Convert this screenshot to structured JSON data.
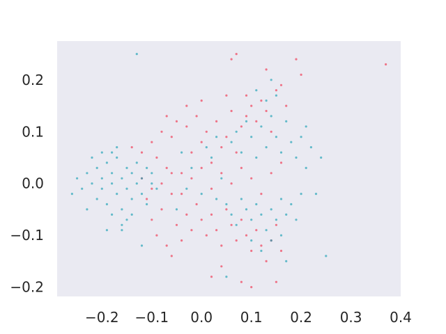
{
  "chart_data": {
    "type": "scatter",
    "title": "",
    "xlabel": "",
    "ylabel": "",
    "xlim": [
      -0.29,
      0.4
    ],
    "ylim": [
      -0.218,
      0.275
    ],
    "x_ticks": [
      {
        "value": -0.2,
        "label": "−0.2"
      },
      {
        "value": -0.1,
        "label": "−0.1"
      },
      {
        "value": 0.0,
        "label": "0.0"
      },
      {
        "value": 0.1,
        "label": "0.1"
      },
      {
        "value": 0.2,
        "label": "0.2"
      },
      {
        "value": 0.3,
        "label": "0.3"
      },
      {
        "value": 0.4,
        "label": "0.4"
      }
    ],
    "y_ticks": [
      {
        "value": -0.2,
        "label": "−0.2"
      },
      {
        "value": -0.1,
        "label": "−0.1"
      },
      {
        "value": 0.0,
        "label": "0.0"
      },
      {
        "value": 0.1,
        "label": "0.1"
      },
      {
        "value": 0.2,
        "label": "0.2"
      }
    ],
    "grid": false,
    "background_color": "#eaeaf2",
    "series": [
      {
        "color": "#f0344e",
        "opacity": 0.65,
        "points": [
          [
            -0.14,
            0.07
          ],
          [
            -0.12,
            0.06
          ],
          [
            -0.1,
            0.08
          ],
          [
            -0.09,
            0.05
          ],
          [
            -0.08,
            0.1
          ],
          [
            -0.07,
            0.03
          ],
          [
            -0.06,
            0.09
          ],
          [
            -0.05,
            0.12
          ],
          [
            -0.04,
            0.02
          ],
          [
            -0.03,
            0.11
          ],
          [
            -0.02,
            0.06
          ],
          [
            -0.01,
            0.13
          ],
          [
            0.0,
            0.08
          ],
          [
            0.01,
            0.1
          ],
          [
            0.02,
            0.04
          ],
          [
            0.03,
            0.12
          ],
          [
            0.04,
            0.07
          ],
          [
            0.05,
            0.09
          ],
          [
            0.06,
            0.14
          ],
          [
            0.07,
            0.06
          ],
          [
            0.08,
            0.11
          ],
          [
            0.09,
            0.13
          ],
          [
            0.1,
            0.15
          ],
          [
            0.11,
            0.12
          ],
          [
            0.12,
            0.16
          ],
          [
            0.13,
            0.14
          ],
          [
            0.14,
            0.1
          ],
          [
            0.15,
            0.18
          ],
          [
            0.16,
            0.19
          ],
          [
            0.17,
            0.15
          ],
          [
            -0.11,
            -0.03
          ],
          [
            -0.1,
            -0.07
          ],
          [
            -0.09,
            -0.1
          ],
          [
            -0.08,
            -0.05
          ],
          [
            -0.07,
            -0.12
          ],
          [
            -0.06,
            -0.02
          ],
          [
            -0.05,
            -0.08
          ],
          [
            -0.04,
            -0.11
          ],
          [
            -0.03,
            -0.06
          ],
          [
            -0.02,
            -0.09
          ],
          [
            -0.01,
            -0.04
          ],
          [
            0.0,
            -0.07
          ],
          [
            0.01,
            -0.1
          ],
          [
            0.02,
            -0.06
          ],
          [
            0.03,
            -0.09
          ],
          [
            0.04,
            -0.12
          ],
          [
            0.05,
            -0.05
          ],
          [
            0.06,
            -0.08
          ],
          [
            0.07,
            -0.11
          ],
          [
            0.08,
            -0.07
          ],
          [
            0.09,
            -0.1
          ],
          [
            0.1,
            -0.13
          ],
          [
            0.11,
            -0.09
          ],
          [
            0.12,
            -0.12
          ],
          [
            0.13,
            -0.15
          ],
          [
            0.14,
            -0.11
          ],
          [
            0.15,
            -0.08
          ],
          [
            0.16,
            -0.13
          ],
          [
            0.02,
            -0.18
          ],
          [
            0.08,
            -0.19
          ],
          [
            -0.12,
            0.01
          ],
          [
            -0.1,
            -0.01
          ],
          [
            -0.08,
            0.0
          ],
          [
            -0.06,
            0.02
          ],
          [
            -0.04,
            -0.02
          ],
          [
            -0.02,
            0.01
          ],
          [
            0.0,
            0.03
          ],
          [
            0.02,
            -0.01
          ],
          [
            0.04,
            0.02
          ],
          [
            0.06,
            0.0
          ],
          [
            0.08,
            0.03
          ],
          [
            0.1,
            0.01
          ],
          [
            0.12,
            -0.02
          ],
          [
            0.14,
            0.02
          ],
          [
            0.16,
            0.04
          ],
          [
            0.05,
            0.17
          ],
          [
            0.07,
            0.25
          ],
          [
            0.06,
            0.24
          ],
          [
            0.13,
            0.22
          ],
          [
            0.19,
            0.24
          ],
          [
            0.2,
            0.21
          ],
          [
            0.37,
            0.23
          ],
          [
            0.1,
            -0.2
          ],
          [
            0.15,
            -0.19
          ],
          [
            -0.06,
            -0.14
          ],
          [
            0.04,
            -0.16
          ],
          [
            -0.03,
            0.15
          ],
          [
            0.0,
            0.16
          ],
          [
            -0.07,
            0.13
          ],
          [
            0.09,
            0.17
          ]
        ]
      },
      {
        "color": "#1a9fb4",
        "opacity": 0.65,
        "points": [
          [
            -0.26,
            -0.02
          ],
          [
            -0.25,
            0.01
          ],
          [
            -0.24,
            -0.01
          ],
          [
            -0.23,
            0.02
          ],
          [
            -0.22,
            0.0
          ],
          [
            -0.21,
            -0.03
          ],
          [
            -0.21,
            0.03
          ],
          [
            -0.2,
            0.01
          ],
          [
            -0.2,
            -0.01
          ],
          [
            -0.19,
            0.04
          ],
          [
            -0.19,
            -0.04
          ],
          [
            -0.18,
            0.0
          ],
          [
            -0.18,
            0.02
          ],
          [
            -0.17,
            -0.02
          ],
          [
            -0.17,
            0.05
          ],
          [
            -0.16,
            0.01
          ],
          [
            -0.16,
            -0.05
          ],
          [
            -0.15,
            0.03
          ],
          [
            -0.15,
            -0.01
          ],
          [
            -0.14,
            0.02
          ],
          [
            -0.14,
            -0.03
          ],
          [
            -0.13,
            0.0
          ],
          [
            -0.13,
            0.04
          ],
          [
            -0.12,
            -0.02
          ],
          [
            -0.12,
            0.01
          ],
          [
            -0.11,
            0.03
          ],
          [
            -0.11,
            -0.04
          ],
          [
            -0.1,
            0.0
          ],
          [
            -0.1,
            0.02
          ],
          [
            -0.09,
            -0.01
          ],
          [
            -0.2,
            0.06
          ],
          [
            -0.18,
            -0.06
          ],
          [
            -0.17,
            0.07
          ],
          [
            -0.16,
            -0.08
          ],
          [
            -0.15,
            -0.07
          ],
          [
            -0.22,
            0.05
          ],
          [
            -0.23,
            -0.05
          ],
          [
            -0.16,
            -0.09
          ],
          [
            -0.18,
            0.06
          ],
          [
            -0.14,
            -0.06
          ],
          [
            0.06,
            0.08
          ],
          [
            0.07,
            0.1
          ],
          [
            0.08,
            0.06
          ],
          [
            0.09,
            0.12
          ],
          [
            0.1,
            0.09
          ],
          [
            0.11,
            0.05
          ],
          [
            0.12,
            0.11
          ],
          [
            0.13,
            0.07
          ],
          [
            0.14,
            0.13
          ],
          [
            0.15,
            0.09
          ],
          [
            0.16,
            0.06
          ],
          [
            0.17,
            0.12
          ],
          [
            0.18,
            0.08
          ],
          [
            0.19,
            0.05
          ],
          [
            0.2,
            0.09
          ],
          [
            0.21,
            0.11
          ],
          [
            0.22,
            0.07
          ],
          [
            0.13,
            0.16
          ],
          [
            0.15,
            0.17
          ],
          [
            0.11,
            0.18
          ],
          [
            0.05,
            -0.04
          ],
          [
            0.06,
            -0.06
          ],
          [
            0.07,
            -0.08
          ],
          [
            0.08,
            -0.03
          ],
          [
            0.09,
            -0.05
          ],
          [
            0.1,
            -0.07
          ],
          [
            0.11,
            -0.04
          ],
          [
            0.12,
            -0.06
          ],
          [
            0.13,
            -0.09
          ],
          [
            0.14,
            -0.05
          ],
          [
            0.15,
            -0.07
          ],
          [
            0.16,
            -0.03
          ],
          [
            0.17,
            -0.06
          ],
          [
            0.18,
            -0.04
          ],
          [
            0.19,
            -0.07
          ],
          [
            0.2,
            -0.02
          ],
          [
            0.14,
            -0.11
          ],
          [
            0.12,
            -0.13
          ],
          [
            0.16,
            -0.1
          ],
          [
            0.1,
            -0.11
          ],
          [
            -0.02,
            0.03
          ],
          [
            0.0,
            -0.02
          ],
          [
            0.02,
            0.05
          ],
          [
            0.03,
            -0.03
          ],
          [
            0.04,
            0.01
          ],
          [
            -0.04,
            0.06
          ],
          [
            0.01,
            0.07
          ],
          [
            -0.05,
            -0.05
          ],
          [
            0.03,
            0.09
          ],
          [
            -0.03,
            -0.01
          ],
          [
            -0.13,
            0.25
          ],
          [
            0.25,
            -0.14
          ],
          [
            0.24,
            0.05
          ],
          [
            0.23,
            -0.02
          ],
          [
            0.05,
            -0.18
          ],
          [
            0.14,
            0.2
          ],
          [
            0.17,
            -0.15
          ],
          [
            -0.12,
            -0.12
          ],
          [
            -0.19,
            -0.09
          ],
          [
            0.21,
            0.03
          ]
        ]
      }
    ]
  }
}
